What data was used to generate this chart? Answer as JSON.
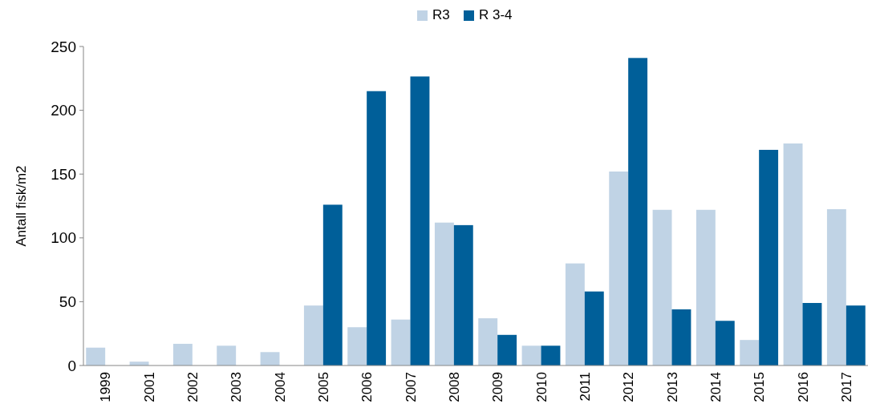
{
  "chart_data": {
    "type": "bar",
    "ylabel": "Antall fisk/m2",
    "categories": [
      "1999",
      "2001",
      "2002",
      "2003",
      "2004",
      "2005",
      "2006",
      "2007",
      "2008",
      "2009",
      "2010",
      "2011",
      "2012",
      "2013",
      "2014",
      "2015",
      "2016",
      "2017"
    ],
    "series": [
      {
        "name": "R3",
        "color": "#c0d3e5",
        "values": [
          14,
          3,
          17,
          15.5,
          10.5,
          47,
          30,
          36,
          112,
          37,
          15.5,
          80,
          152,
          122,
          122,
          20,
          174,
          122.5
        ]
      },
      {
        "name": "R 3-4",
        "color": "#005f99",
        "values": [
          0,
          0,
          0,
          0,
          0,
          126,
          215,
          226.5,
          110,
          24,
          15.5,
          58,
          241,
          44,
          35,
          169,
          49,
          47
        ]
      }
    ],
    "ylim": [
      0,
      250
    ],
    "yticks": [
      0,
      50,
      100,
      150,
      200,
      250
    ],
    "grid": false,
    "legend": "top"
  }
}
